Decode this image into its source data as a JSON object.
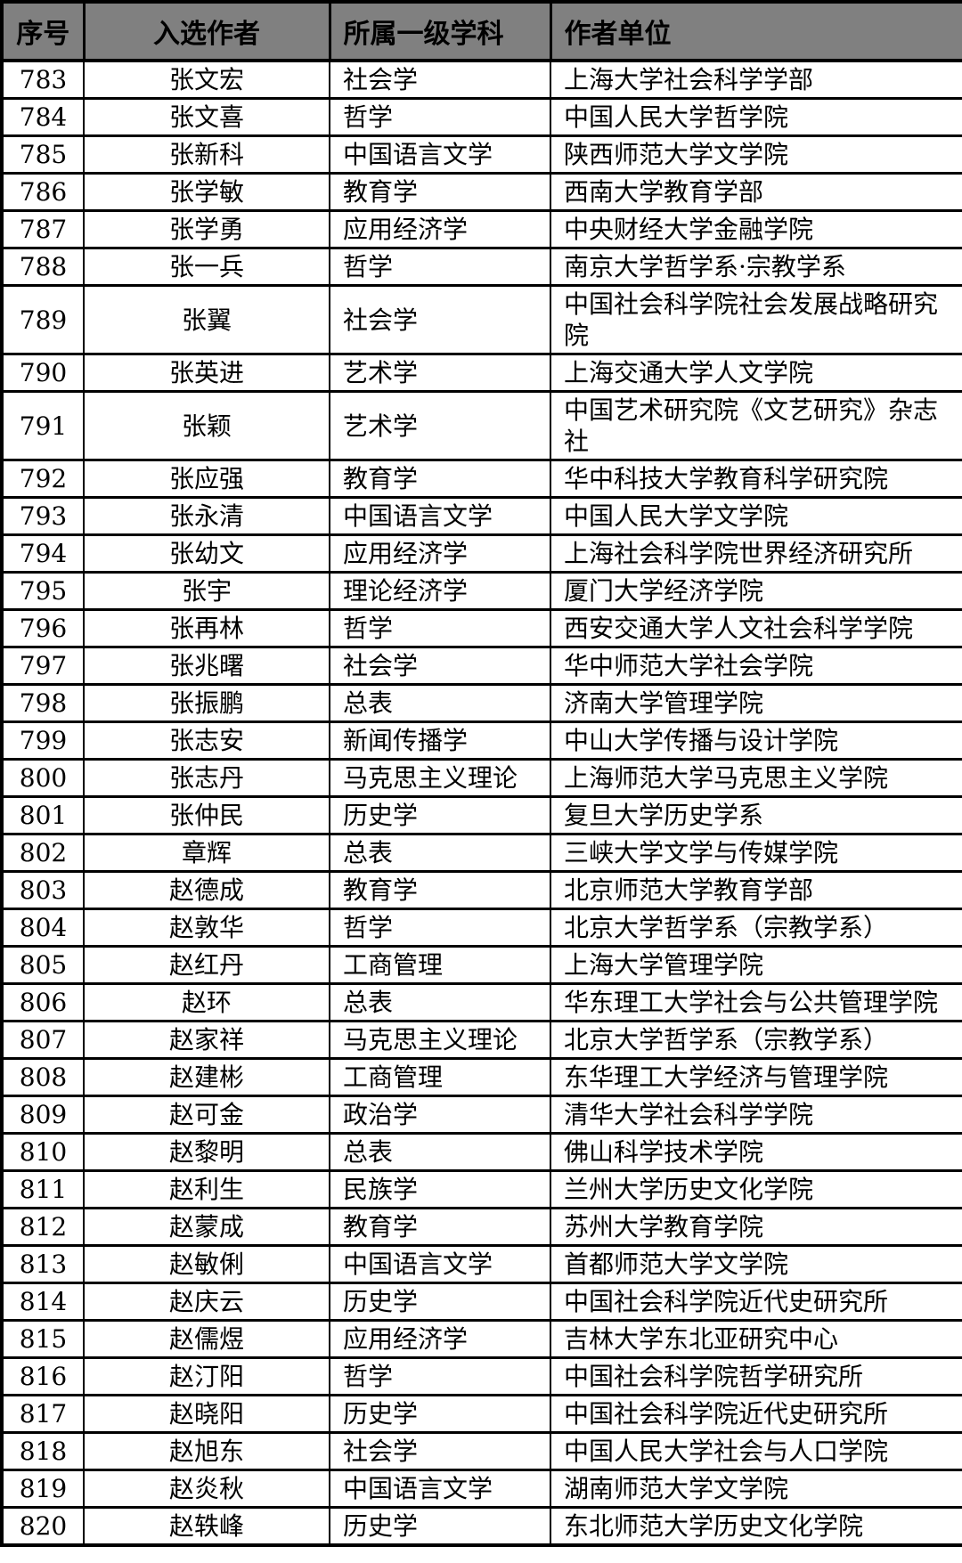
{
  "table": {
    "columns": [
      {
        "key": "no",
        "label": "序号"
      },
      {
        "key": "author",
        "label": "入选作者"
      },
      {
        "key": "discipline",
        "label": "所属一级学科"
      },
      {
        "key": "affiliation",
        "label": "作者单位"
      }
    ],
    "rows": [
      {
        "no": "783",
        "author": "张文宏",
        "discipline": "社会学",
        "affiliation": "上海大学社会科学学部"
      },
      {
        "no": "784",
        "author": "张文喜",
        "discipline": "哲学",
        "affiliation": "中国人民大学哲学院"
      },
      {
        "no": "785",
        "author": "张新科",
        "discipline": "中国语言文学",
        "affiliation": "陕西师范大学文学院"
      },
      {
        "no": "786",
        "author": "张学敏",
        "discipline": "教育学",
        "affiliation": "西南大学教育学部"
      },
      {
        "no": "787",
        "author": "张学勇",
        "discipline": "应用经济学",
        "affiliation": "中央财经大学金融学院"
      },
      {
        "no": "788",
        "author": "张一兵",
        "discipline": "哲学",
        "affiliation": "南京大学哲学系·宗教学系"
      },
      {
        "no": "789",
        "author": "张翼",
        "discipline": "社会学",
        "affiliation": "中国社会科学院社会发展战略研究院"
      },
      {
        "no": "790",
        "author": "张英进",
        "discipline": "艺术学",
        "affiliation": "上海交通大学人文学院"
      },
      {
        "no": "791",
        "author": "张颖",
        "discipline": "艺术学",
        "affiliation": "中国艺术研究院《文艺研究》杂志社"
      },
      {
        "no": "792",
        "author": "张应强",
        "discipline": "教育学",
        "affiliation": "华中科技大学教育科学研究院"
      },
      {
        "no": "793",
        "author": "张永清",
        "discipline": "中国语言文学",
        "affiliation": "中国人民大学文学院"
      },
      {
        "no": "794",
        "author": "张幼文",
        "discipline": "应用经济学",
        "affiliation": "上海社会科学院世界经济研究所"
      },
      {
        "no": "795",
        "author": "张宇",
        "discipline": "理论经济学",
        "affiliation": "厦门大学经济学院"
      },
      {
        "no": "796",
        "author": "张再林",
        "discipline": "哲学",
        "affiliation": "西安交通大学人文社会科学学院"
      },
      {
        "no": "797",
        "author": "张兆曙",
        "discipline": "社会学",
        "affiliation": "华中师范大学社会学院"
      },
      {
        "no": "798",
        "author": "张振鹏",
        "discipline": "总表",
        "affiliation": "济南大学管理学院"
      },
      {
        "no": "799",
        "author": "张志安",
        "discipline": "新闻传播学",
        "affiliation": "中山大学传播与设计学院"
      },
      {
        "no": "800",
        "author": "张志丹",
        "discipline": "马克思主义理论",
        "affiliation": "上海师范大学马克思主义学院"
      },
      {
        "no": "801",
        "author": "张仲民",
        "discipline": "历史学",
        "affiliation": "复旦大学历史学系"
      },
      {
        "no": "802",
        "author": "章辉",
        "discipline": "总表",
        "affiliation": "三峡大学文学与传媒学院"
      },
      {
        "no": "803",
        "author": "赵德成",
        "discipline": "教育学",
        "affiliation": "北京师范大学教育学部"
      },
      {
        "no": "804",
        "author": "赵敦华",
        "discipline": "哲学",
        "affiliation": "北京大学哲学系（宗教学系）"
      },
      {
        "no": "805",
        "author": "赵红丹",
        "discipline": "工商管理",
        "affiliation": "上海大学管理学院"
      },
      {
        "no": "806",
        "author": "赵环",
        "discipline": "总表",
        "affiliation": "华东理工大学社会与公共管理学院"
      },
      {
        "no": "807",
        "author": "赵家祥",
        "discipline": "马克思主义理论",
        "affiliation": "北京大学哲学系（宗教学系）"
      },
      {
        "no": "808",
        "author": "赵建彬",
        "discipline": "工商管理",
        "affiliation": "东华理工大学经济与管理学院"
      },
      {
        "no": "809",
        "author": "赵可金",
        "discipline": "政治学",
        "affiliation": "清华大学社会科学学院"
      },
      {
        "no": "810",
        "author": "赵黎明",
        "discipline": "总表",
        "affiliation": "佛山科学技术学院"
      },
      {
        "no": "811",
        "author": "赵利生",
        "discipline": "民族学",
        "affiliation": "兰州大学历史文化学院"
      },
      {
        "no": "812",
        "author": "赵蒙成",
        "discipline": "教育学",
        "affiliation": "苏州大学教育学院"
      },
      {
        "no": "813",
        "author": "赵敏俐",
        "discipline": "中国语言文学",
        "affiliation": "首都师范大学文学院"
      },
      {
        "no": "814",
        "author": "赵庆云",
        "discipline": "历史学",
        "affiliation": "中国社会科学院近代史研究所"
      },
      {
        "no": "815",
        "author": "赵儒煜",
        "discipline": "应用经济学",
        "affiliation": "吉林大学东北亚研究中心"
      },
      {
        "no": "816",
        "author": "赵汀阳",
        "discipline": "哲学",
        "affiliation": "中国社会科学院哲学研究所"
      },
      {
        "no": "817",
        "author": "赵晓阳",
        "discipline": "历史学",
        "affiliation": "中国社会科学院近代史研究所"
      },
      {
        "no": "818",
        "author": "赵旭东",
        "discipline": "社会学",
        "affiliation": "中国人民大学社会与人口学院"
      },
      {
        "no": "819",
        "author": "赵炎秋",
        "discipline": "中国语言文学",
        "affiliation": "湖南师范大学文学院"
      },
      {
        "no": "820",
        "author": "赵轶峰",
        "discipline": "历史学",
        "affiliation": "东北师范大学历史文化学院"
      }
    ],
    "colors": {
      "header_bg": "#808080",
      "border": "#000000",
      "row_bg": "#ffffff",
      "text": "#000000"
    }
  }
}
